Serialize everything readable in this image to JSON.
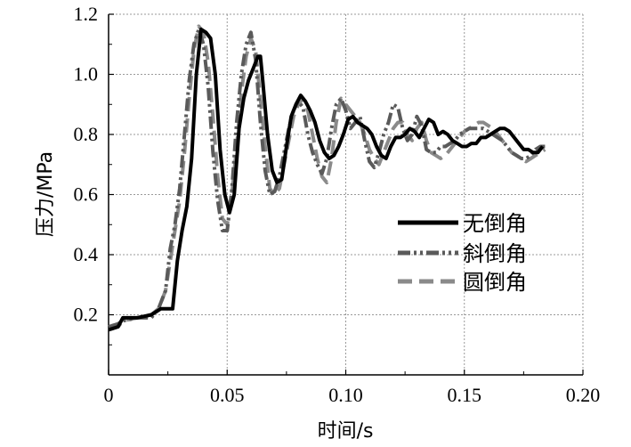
{
  "chart_data": {
    "type": "line",
    "xlabel": "时间/s",
    "ylabel": "压力/MPa",
    "xlim": [
      0,
      0.2
    ],
    "ylim": [
      0,
      1.2
    ],
    "x_ticks": [
      0,
      0.05,
      0.1,
      0.15,
      0.2
    ],
    "x_tick_labels": [
      "0",
      "0.05",
      "0.10",
      "0.15",
      "0.20"
    ],
    "y_ticks": [
      0.2,
      0.4,
      0.6,
      0.8,
      1.0,
      1.2
    ],
    "y_tick_labels": [
      "0.2",
      "0.4",
      "0.6",
      "0.8",
      "1.0",
      "1.2"
    ],
    "grid": true,
    "legend_position": "center-right",
    "series": [
      {
        "name": "无倒角",
        "color": "#000000",
        "style": "solid",
        "x": [
          0,
          0.004,
          0.006,
          0.012,
          0.018,
          0.022,
          0.027,
          0.029,
          0.031,
          0.033,
          0.035,
          0.037,
          0.039,
          0.041,
          0.043,
          0.045,
          0.047,
          0.049,
          0.051,
          0.053,
          0.055,
          0.057,
          0.059,
          0.061,
          0.063,
          0.064,
          0.065,
          0.067,
          0.069,
          0.071,
          0.073,
          0.075,
          0.077,
          0.079,
          0.081,
          0.083,
          0.085,
          0.087,
          0.089,
          0.091,
          0.093,
          0.095,
          0.097,
          0.099,
          0.101,
          0.103,
          0.105,
          0.107,
          0.109,
          0.111,
          0.113,
          0.115,
          0.117,
          0.119,
          0.121,
          0.123,
          0.125,
          0.127,
          0.129,
          0.131,
          0.133,
          0.135,
          0.137,
          0.139,
          0.141,
          0.143,
          0.145,
          0.147,
          0.149,
          0.151,
          0.153,
          0.155,
          0.157,
          0.159,
          0.161,
          0.163,
          0.165,
          0.167,
          0.169,
          0.171,
          0.173,
          0.175,
          0.177,
          0.179,
          0.181,
          0.183
        ],
        "values": [
          0.15,
          0.16,
          0.19,
          0.19,
          0.2,
          0.22,
          0.22,
          0.38,
          0.48,
          0.56,
          0.72,
          1.0,
          1.15,
          1.14,
          1.12,
          1.0,
          0.75,
          0.6,
          0.54,
          0.6,
          0.82,
          0.92,
          0.98,
          1.02,
          1.06,
          1.06,
          0.98,
          0.8,
          0.68,
          0.64,
          0.65,
          0.76,
          0.86,
          0.9,
          0.93,
          0.91,
          0.88,
          0.84,
          0.78,
          0.74,
          0.72,
          0.73,
          0.76,
          0.8,
          0.85,
          0.86,
          0.84,
          0.83,
          0.82,
          0.8,
          0.76,
          0.73,
          0.72,
          0.76,
          0.79,
          0.79,
          0.8,
          0.82,
          0.81,
          0.79,
          0.82,
          0.85,
          0.84,
          0.8,
          0.81,
          0.8,
          0.78,
          0.77,
          0.76,
          0.76,
          0.77,
          0.77,
          0.79,
          0.79,
          0.8,
          0.81,
          0.82,
          0.82,
          0.81,
          0.79,
          0.77,
          0.75,
          0.75,
          0.74,
          0.74,
          0.76
        ]
      },
      {
        "name": "斜倒角",
        "color": "#5a5a5a",
        "style": "dashdot",
        "x": [
          0,
          0.004,
          0.006,
          0.012,
          0.018,
          0.021,
          0.024,
          0.026,
          0.028,
          0.03,
          0.032,
          0.034,
          0.036,
          0.038,
          0.04,
          0.042,
          0.044,
          0.046,
          0.048,
          0.05,
          0.052,
          0.054,
          0.056,
          0.058,
          0.06,
          0.062,
          0.064,
          0.066,
          0.068,
          0.07,
          0.072,
          0.074,
          0.076,
          0.078,
          0.08,
          0.082,
          0.084,
          0.086,
          0.088,
          0.09,
          0.092,
          0.094,
          0.096,
          0.098,
          0.1,
          0.102,
          0.104,
          0.106,
          0.108,
          0.11,
          0.112,
          0.114,
          0.116,
          0.118,
          0.12,
          0.122,
          0.124,
          0.126,
          0.128,
          0.13,
          0.132,
          0.134,
          0.136,
          0.138,
          0.14,
          0.142,
          0.144,
          0.146,
          0.148,
          0.15,
          0.152,
          0.154,
          0.156,
          0.158,
          0.16,
          0.162,
          0.164,
          0.166,
          0.168,
          0.17,
          0.172,
          0.174,
          0.176,
          0.178,
          0.18,
          0.182,
          0.184
        ],
        "values": [
          0.16,
          0.17,
          0.18,
          0.19,
          0.19,
          0.22,
          0.28,
          0.42,
          0.5,
          0.62,
          0.8,
          0.98,
          1.1,
          1.15,
          1.1,
          0.96,
          0.74,
          0.58,
          0.48,
          0.48,
          0.62,
          0.84,
          1.0,
          1.1,
          1.14,
          1.05,
          0.84,
          0.68,
          0.6,
          0.61,
          0.66,
          0.74,
          0.82,
          0.88,
          0.91,
          0.89,
          0.8,
          0.74,
          0.7,
          0.67,
          0.72,
          0.82,
          0.9,
          0.92,
          0.88,
          0.82,
          0.84,
          0.86,
          0.78,
          0.71,
          0.69,
          0.74,
          0.8,
          0.84,
          0.9,
          0.89,
          0.82,
          0.78,
          0.8,
          0.86,
          0.83,
          0.75,
          0.74,
          0.74,
          0.76,
          0.76,
          0.77,
          0.78,
          0.8,
          0.81,
          0.82,
          0.82,
          0.82,
          0.82,
          0.81,
          0.8,
          0.79,
          0.78,
          0.76,
          0.74,
          0.73,
          0.72,
          0.72,
          0.73,
          0.75,
          0.76,
          0.76
        ]
      },
      {
        "name": "圆倒角",
        "color": "#8a8a8a",
        "style": "dashed",
        "x": [
          0,
          0.004,
          0.006,
          0.012,
          0.018,
          0.021,
          0.024,
          0.026,
          0.028,
          0.03,
          0.032,
          0.034,
          0.036,
          0.038,
          0.04,
          0.042,
          0.044,
          0.046,
          0.048,
          0.05,
          0.052,
          0.054,
          0.056,
          0.058,
          0.06,
          0.062,
          0.064,
          0.066,
          0.068,
          0.07,
          0.072,
          0.074,
          0.076,
          0.078,
          0.08,
          0.082,
          0.084,
          0.086,
          0.088,
          0.09,
          0.092,
          0.094,
          0.096,
          0.098,
          0.1,
          0.102,
          0.104,
          0.106,
          0.108,
          0.11,
          0.112,
          0.114,
          0.116,
          0.118,
          0.12,
          0.122,
          0.124,
          0.126,
          0.128,
          0.13,
          0.132,
          0.134,
          0.136,
          0.138,
          0.14,
          0.142,
          0.144,
          0.146,
          0.148,
          0.15,
          0.152,
          0.154,
          0.156,
          0.158,
          0.16,
          0.162,
          0.164,
          0.166,
          0.168,
          0.17,
          0.172,
          0.174,
          0.176,
          0.178,
          0.18,
          0.182,
          0.184
        ],
        "values": [
          0.15,
          0.16,
          0.18,
          0.19,
          0.2,
          0.22,
          0.28,
          0.38,
          0.48,
          0.58,
          0.74,
          0.92,
          1.08,
          1.16,
          1.14,
          1.04,
          0.86,
          0.66,
          0.52,
          0.5,
          0.6,
          0.76,
          0.94,
          1.06,
          1.12,
          1.08,
          0.92,
          0.76,
          0.62,
          0.6,
          0.62,
          0.7,
          0.78,
          0.86,
          0.9,
          0.92,
          0.88,
          0.8,
          0.72,
          0.66,
          0.64,
          0.72,
          0.84,
          0.92,
          0.9,
          0.88,
          0.86,
          0.84,
          0.8,
          0.75,
          0.72,
          0.7,
          0.74,
          0.78,
          0.82,
          0.84,
          0.84,
          0.8,
          0.78,
          0.82,
          0.84,
          0.78,
          0.74,
          0.73,
          0.72,
          0.73,
          0.75,
          0.77,
          0.79,
          0.81,
          0.82,
          0.83,
          0.84,
          0.84,
          0.83,
          0.82,
          0.8,
          0.78,
          0.76,
          0.74,
          0.73,
          0.72,
          0.71,
          0.72,
          0.73,
          0.74,
          0.75
        ]
      }
    ]
  }
}
